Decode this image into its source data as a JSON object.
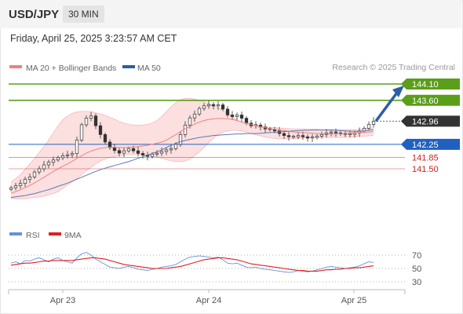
{
  "header": {
    "pair": "USD/JPY",
    "timeframe": "30 MIN"
  },
  "timestamp": "Friday, April 25, 2025 3:23:57 AM CET",
  "credit": "Research © 2025 Trading Central",
  "legend": {
    "ma20_bb": "MA 20 + Bollinger Bands",
    "ma50": "MA 50",
    "rsi": "RSI",
    "rsi_ma": "9MA"
  },
  "colors": {
    "candle": "#333333",
    "ma20": "#f08080",
    "bands": "#fbd5d5",
    "ma50": "#5b79b8",
    "resistance": "#5a9e1a",
    "pivot": "#2060c0",
    "support": "#d02020",
    "rsi": "#6a8fd8",
    "rsi_ma": "#e02020",
    "arrow": "#2c5ea6"
  },
  "chart_data": [
    {
      "type": "candlestick",
      "title": "USD/JPY 30 MIN",
      "x_tick_labels": [
        "Apr 23",
        "Apr 24",
        "Apr 25"
      ],
      "y_range": [
        140.4,
        144.4
      ],
      "last_price": 142.96,
      "levels": [
        {
          "value": 144.1,
          "label": "144.10",
          "kind": "resistance"
        },
        {
          "value": 143.6,
          "label": "143.60",
          "kind": "resistance"
        },
        {
          "value": 142.25,
          "label": "142.25",
          "kind": "pivot"
        },
        {
          "value": 141.85,
          "label": "141.85",
          "kind": "support"
        },
        {
          "value": 141.5,
          "label": "141.50",
          "kind": "support"
        }
      ],
      "close_series": [
        140.92,
        140.98,
        141.05,
        141.18,
        141.25,
        141.4,
        141.5,
        141.62,
        141.7,
        141.77,
        141.84,
        141.9,
        141.93,
        141.97,
        142.38,
        142.85,
        143.05,
        143.12,
        142.82,
        142.55,
        142.32,
        142.15,
        142.06,
        141.98,
        142.05,
        142.12,
        142.05,
        141.97,
        141.92,
        141.88,
        141.95,
        141.98,
        142.03,
        142.08,
        142.12,
        142.25,
        142.55,
        142.84,
        143.06,
        143.18,
        143.35,
        143.43,
        143.47,
        143.43,
        143.46,
        143.33,
        143.15,
        143.1,
        143.15,
        143.05,
        142.9,
        142.82,
        142.84,
        142.78,
        142.72,
        142.7,
        142.66,
        142.58,
        142.52,
        142.48,
        142.48,
        142.52,
        142.48,
        142.44,
        142.46,
        142.5,
        142.55,
        142.6,
        142.63,
        142.6,
        142.57,
        142.55,
        142.56,
        142.6,
        142.66,
        142.74,
        142.86,
        142.96
      ],
      "ma20": [
        140.75,
        140.8,
        140.86,
        140.92,
        140.99,
        141.07,
        141.15,
        141.24,
        141.33,
        141.42,
        141.5,
        141.58,
        141.65,
        141.73,
        141.82,
        141.9,
        141.98,
        142.04,
        142.09,
        142.13,
        142.15,
        142.16,
        142.16,
        142.15,
        142.15,
        142.16,
        142.17,
        142.18,
        142.2,
        142.22,
        142.25,
        142.28,
        142.32,
        142.38,
        142.46,
        142.55,
        142.64,
        142.73,
        142.8,
        142.87,
        142.93,
        142.98,
        143.01,
        143.03,
        143.04,
        143.04,
        143.03,
        143.01,
        142.98,
        142.94,
        142.9,
        142.86,
        142.82,
        142.79,
        142.76,
        142.73,
        142.71,
        142.69,
        142.67,
        142.65,
        142.63,
        142.62,
        142.61,
        142.6,
        142.59,
        142.58,
        142.58,
        142.57,
        142.57,
        142.57,
        142.58,
        142.58,
        142.59,
        142.6,
        142.61,
        142.62,
        142.63,
        142.64
      ],
      "bb_upper": [
        141.1,
        141.2,
        141.32,
        141.48,
        141.65,
        141.82,
        142,
        142.18,
        142.38,
        142.6,
        142.82,
        143.0,
        143.12,
        143.2,
        143.24,
        143.26,
        143.26,
        143.25,
        143.22,
        143.18,
        143.14,
        143.08,
        143.02,
        142.95,
        142.9,
        142.86,
        142.84,
        142.83,
        142.84,
        142.86,
        142.9,
        142.98,
        143.1,
        143.25,
        143.4,
        143.52,
        143.62,
        143.66,
        143.66,
        143.64,
        143.6,
        143.56,
        143.5,
        143.44,
        143.38,
        143.3,
        143.2,
        143.1,
        143.0,
        142.92,
        142.86,
        142.82,
        142.8,
        142.79,
        142.78,
        142.77,
        142.76,
        142.75,
        142.74,
        142.73,
        142.72,
        142.72,
        142.72,
        142.71,
        142.71,
        142.71,
        142.7,
        142.7,
        142.7,
        142.7,
        142.7,
        142.7,
        142.7,
        142.7,
        142.7,
        142.72,
        142.74,
        142.76
      ],
      "bb_lower": [
        140.6,
        140.58,
        140.58,
        140.58,
        140.6,
        140.62,
        140.64,
        140.66,
        140.7,
        140.74,
        140.8,
        140.9,
        141.0,
        141.1,
        141.2,
        141.32,
        141.44,
        141.55,
        141.65,
        141.74,
        141.8,
        141.85,
        141.88,
        141.9,
        141.92,
        141.93,
        141.93,
        141.93,
        141.93,
        141.92,
        141.9,
        141.86,
        141.82,
        141.78,
        141.74,
        141.72,
        141.72,
        141.74,
        141.8,
        141.9,
        142.02,
        142.16,
        142.3,
        142.44,
        142.55,
        142.62,
        142.66,
        142.68,
        142.68,
        142.66,
        142.62,
        142.58,
        142.54,
        142.51,
        142.48,
        142.45,
        142.43,
        142.42,
        142.42,
        142.42,
        142.42,
        142.43,
        142.44,
        142.45,
        142.45,
        142.46,
        142.46,
        142.46,
        142.46,
        142.46,
        142.46,
        142.47,
        142.47,
        142.48,
        142.49,
        142.5,
        142.51,
        142.52
      ],
      "ma50": [
        140.62,
        140.64,
        140.66,
        140.68,
        140.71,
        140.74,
        140.78,
        140.82,
        140.86,
        140.91,
        140.96,
        141.01,
        141.06,
        141.12,
        141.18,
        141.24,
        141.3,
        141.36,
        141.42,
        141.47,
        141.52,
        141.56,
        141.6,
        141.64,
        141.68,
        141.72,
        141.77,
        141.82,
        141.87,
        141.92,
        141.97,
        142.02,
        142.08,
        142.15,
        142.22,
        142.28,
        142.33,
        142.37,
        142.4,
        142.43,
        142.46,
        142.48,
        142.5,
        142.52,
        142.53,
        142.54,
        142.55,
        142.56,
        142.57,
        142.57,
        142.58,
        142.58,
        142.58,
        142.59,
        142.6,
        142.61,
        142.62,
        142.63,
        142.64,
        142.65,
        142.66,
        142.67,
        142.68,
        142.68,
        142.69,
        142.69,
        142.69,
        142.69,
        142.69,
        142.68,
        142.67,
        142.66,
        142.65,
        142.65,
        142.65,
        142.66,
        142.68,
        142.7
      ]
    },
    {
      "type": "line",
      "title": "RSI",
      "y_ticks": [
        70,
        50,
        30
      ],
      "y_range": [
        20,
        80
      ],
      "series": [
        {
          "name": "RSI",
          "values": [
            58,
            60,
            57,
            62,
            61,
            64,
            66,
            63,
            60,
            64,
            66,
            62,
            60,
            58,
            66,
            72,
            74,
            70,
            64,
            60,
            56,
            52,
            51,
            50,
            52,
            53,
            51,
            49,
            48,
            47,
            49,
            50,
            52,
            53,
            54,
            56,
            60,
            64,
            67,
            68,
            69,
            68,
            67,
            66,
            67,
            63,
            58,
            57,
            58,
            55,
            52,
            51,
            52,
            50,
            49,
            48,
            47,
            46,
            45,
            44,
            45,
            47,
            46,
            45,
            46,
            48,
            50,
            52,
            53,
            52,
            51,
            50,
            51,
            52,
            54,
            57,
            60,
            59
          ]
        },
        {
          "name": "9MA",
          "values": [
            55,
            56,
            57,
            58,
            58,
            59,
            60,
            61,
            61,
            62,
            62,
            62,
            62,
            62,
            63,
            64,
            65,
            66,
            66,
            65,
            64,
            62,
            60,
            58,
            56,
            55,
            54,
            53,
            52,
            51,
            50,
            50,
            50,
            50,
            51,
            52,
            53,
            55,
            57,
            59,
            61,
            63,
            64,
            65,
            66,
            66,
            65,
            64,
            63,
            61,
            59,
            57,
            56,
            55,
            54,
            53,
            52,
            51,
            50,
            49,
            48,
            47,
            47,
            46,
            46,
            46,
            47,
            48,
            48,
            49,
            49,
            50,
            50,
            51,
            51,
            52,
            53,
            54
          ]
        }
      ]
    }
  ]
}
